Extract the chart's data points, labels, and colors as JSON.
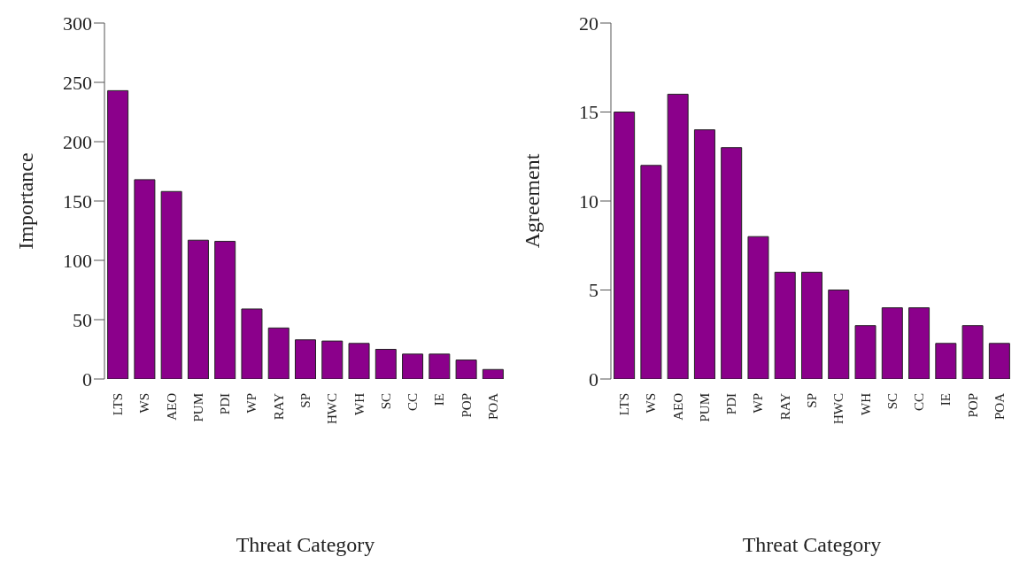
{
  "chart_data": [
    {
      "type": "bar",
      "xlabel": "Threat Category",
      "ylabel": "Importance",
      "categories": [
        "LTS",
        "WS",
        "AEO",
        "PUM",
        "PDI",
        "WP",
        "RAY",
        "SP",
        "HWC",
        "WH",
        "SC",
        "CC",
        "IE",
        "POP",
        "POA"
      ],
      "values": [
        243,
        168,
        158,
        117,
        116,
        59,
        43,
        33,
        32,
        30,
        25,
        21,
        21,
        16,
        8
      ],
      "color": "#8b008b",
      "ylim": [
        0,
        300
      ],
      "yticks": [
        0,
        50,
        100,
        150,
        200,
        250,
        300
      ]
    },
    {
      "type": "bar",
      "xlabel": "Threat Category",
      "ylabel": "Agreement",
      "categories": [
        "LTS",
        "WS",
        "AEO",
        "PUM",
        "PDI",
        "WP",
        "RAY",
        "SP",
        "HWC",
        "WH",
        "SC",
        "CC",
        "IE",
        "POP",
        "POA"
      ],
      "values": [
        15,
        12,
        16,
        14,
        13,
        8,
        6,
        6,
        5,
        3,
        4,
        4,
        2,
        3,
        2
      ],
      "color": "#8b008b",
      "ylim": [
        0,
        20
      ],
      "yticks": [
        0,
        5,
        10,
        15,
        20
      ]
    }
  ]
}
